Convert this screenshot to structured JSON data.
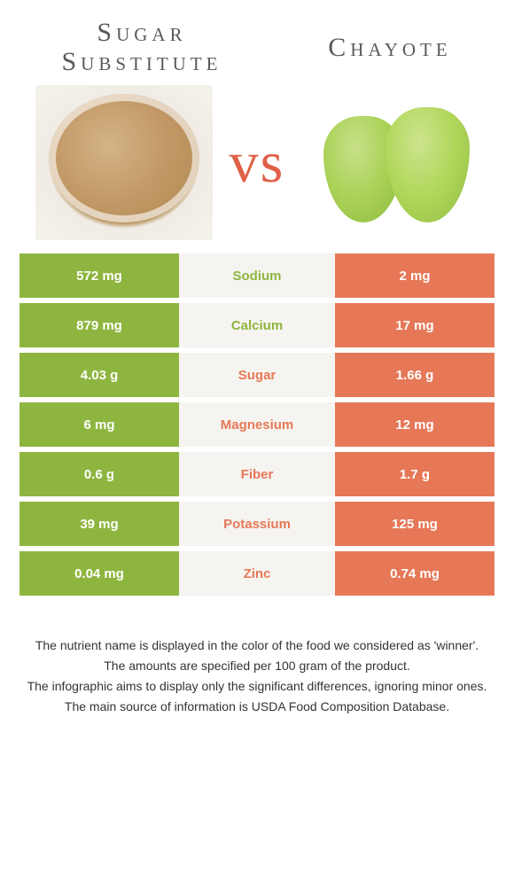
{
  "titles": {
    "left": "Sugar Substitute",
    "right": "Chayote",
    "vs": "vs"
  },
  "colors": {
    "left_bg": "#8eb53f",
    "right_bg": "#e67857",
    "mid_bg": "#f6f4f0",
    "vs_color": "#e06048"
  },
  "rows": [
    {
      "left": "572 mg",
      "label": "Sodium",
      "right": "2 mg",
      "winner": "left"
    },
    {
      "left": "879 mg",
      "label": "Calcium",
      "right": "17 mg",
      "winner": "left"
    },
    {
      "left": "4.03 g",
      "label": "Sugar",
      "right": "1.66 g",
      "winner": "right"
    },
    {
      "left": "6 mg",
      "label": "Magnesium",
      "right": "12 mg",
      "winner": "right"
    },
    {
      "left": "0.6 g",
      "label": "Fiber",
      "right": "1.7 g",
      "winner": "right"
    },
    {
      "left": "39 mg",
      "label": "Potassium",
      "right": "125 mg",
      "winner": "right"
    },
    {
      "left": "0.04 mg",
      "label": "Zinc",
      "right": "0.74 mg",
      "winner": "right"
    }
  ],
  "footer": {
    "line1": "The nutrient name is displayed in the color of the food we considered as 'winner'.",
    "line2": "The amounts are specified per 100 gram of the product.",
    "line3": "The infographic aims to display only the significant differences, ignoring minor ones.",
    "line4": "The main source of information is USDA Food Composition Database."
  }
}
